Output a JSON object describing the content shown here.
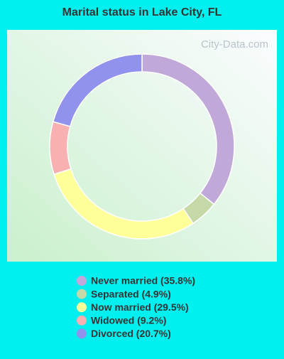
{
  "chart_data": {
    "type": "donut",
    "title": "Marital status in Lake City, FL",
    "watermark": "City-Data.com",
    "categories": [
      "Never married (35.8%)",
      "Separated (4.9%)",
      "Now married (29.5%)",
      "Widowed (9.2%)",
      "Divorced (20.7%)"
    ],
    "values": [
      35.8,
      4.9,
      29.5,
      9.2,
      20.7
    ],
    "colors": [
      "#c0a8d8",
      "#c4d8a8",
      "#ffff99",
      "#f8b0b0",
      "#9191ee"
    ]
  }
}
